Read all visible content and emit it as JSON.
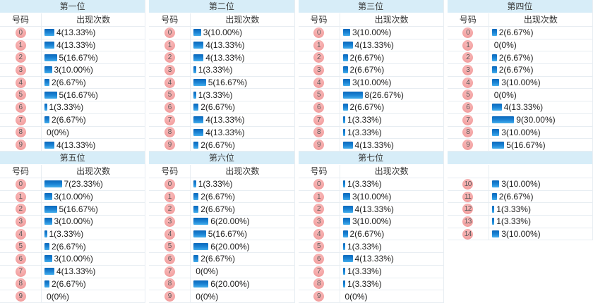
{
  "colors": {
    "header_bg": "#d7edf8",
    "bar_blue_dark": "#0a67bb",
    "bar_blue_light": "#45aeeb",
    "badge_pink": "#f4a5a5",
    "row_border": "#e7edf2",
    "text_dark": "#1c1c1c"
  },
  "chart_data": [
    {
      "type": "bar",
      "title": "第一位",
      "number_header": "号码",
      "count_header": "出现次数",
      "categories": [
        "0",
        "1",
        "2",
        "3",
        "4",
        "5",
        "6",
        "7",
        "8",
        "9"
      ],
      "values": [
        4,
        4,
        5,
        3,
        2,
        5,
        1,
        2,
        0,
        4
      ],
      "labels": [
        "4(13.33%)",
        "4(13.33%)",
        "5(16.67%)",
        "3(10.00%)",
        "2(6.67%)",
        "5(16.67%)",
        "1(3.33%)",
        "2(6.67%)",
        "0(0%)",
        "4(13.33%)"
      ]
    },
    {
      "type": "bar",
      "title": "第二位",
      "number_header": "号码",
      "count_header": "出现次数",
      "categories": [
        "0",
        "1",
        "2",
        "3",
        "4",
        "5",
        "6",
        "7",
        "8",
        "9"
      ],
      "values": [
        3,
        4,
        4,
        1,
        5,
        1,
        2,
        4,
        4,
        2
      ],
      "labels": [
        "3(10.00%)",
        "4(13.33%)",
        "4(13.33%)",
        "1(3.33%)",
        "5(16.67%)",
        "1(3.33%)",
        "2(6.67%)",
        "4(13.33%)",
        "4(13.33%)",
        "2(6.67%)"
      ]
    },
    {
      "type": "bar",
      "title": "第三位",
      "number_header": "号码",
      "count_header": "出现次数",
      "categories": [
        "0",
        "1",
        "2",
        "3",
        "4",
        "5",
        "6",
        "7",
        "8",
        "9"
      ],
      "values": [
        3,
        4,
        2,
        2,
        3,
        8,
        2,
        1,
        1,
        4
      ],
      "labels": [
        "3(10.00%)",
        "4(13.33%)",
        "2(6.67%)",
        "2(6.67%)",
        "3(10.00%)",
        "8(26.67%)",
        "2(6.67%)",
        "1(3.33%)",
        "1(3.33%)",
        "4(13.33%)"
      ]
    },
    {
      "type": "bar",
      "title": "第四位",
      "number_header": "号码",
      "count_header": "出现次数",
      "categories": [
        "0",
        "1",
        "2",
        "3",
        "4",
        "5",
        "6",
        "7",
        "8",
        "9"
      ],
      "values": [
        2,
        0,
        2,
        2,
        3,
        0,
        4,
        9,
        3,
        5
      ],
      "labels": [
        "2(6.67%)",
        "0(0%)",
        "2(6.67%)",
        "2(6.67%)",
        "3(10.00%)",
        "0(0%)",
        "4(13.33%)",
        "9(30.00%)",
        "3(10.00%)",
        "5(16.67%)"
      ]
    },
    {
      "type": "bar",
      "title": "第五位",
      "number_header": "号码",
      "count_header": "出现次数",
      "categories": [
        "0",
        "1",
        "2",
        "3",
        "4",
        "5",
        "6",
        "7",
        "8",
        "9"
      ],
      "values": [
        7,
        3,
        5,
        3,
        1,
        2,
        3,
        4,
        2,
        0
      ],
      "labels": [
        "7(23.33%)",
        "3(10.00%)",
        "5(16.67%)",
        "3(10.00%)",
        "1(3.33%)",
        "2(6.67%)",
        "3(10.00%)",
        "4(13.33%)",
        "2(6.67%)",
        "0(0%)"
      ]
    },
    {
      "type": "bar",
      "title": "第六位",
      "number_header": "号码",
      "count_header": "出现次数",
      "categories": [
        "0",
        "1",
        "2",
        "3",
        "4",
        "5",
        "6",
        "7",
        "8",
        "9"
      ],
      "values": [
        1,
        2,
        2,
        6,
        5,
        6,
        2,
        0,
        6,
        0
      ],
      "labels": [
        "1(3.33%)",
        "2(6.67%)",
        "2(6.67%)",
        "6(20.00%)",
        "5(16.67%)",
        "6(20.00%)",
        "2(6.67%)",
        "0(0%)",
        "6(20.00%)",
        "0(0%)"
      ]
    },
    {
      "type": "bar",
      "title": "第七位",
      "number_header": "号码",
      "count_header": "出现次数",
      "categories": [
        "0",
        "1",
        "2",
        "3",
        "4",
        "5",
        "6",
        "7",
        "8",
        "9"
      ],
      "values": [
        1,
        3,
        4,
        3,
        2,
        1,
        4,
        1,
        1,
        0
      ],
      "labels": [
        "1(3.33%)",
        "3(10.00%)",
        "4(13.33%)",
        "3(10.00%)",
        "2(6.67%)",
        "1(3.33%)",
        "4(13.33%)",
        "1(3.33%)",
        "1(3.33%)",
        "0(0%)"
      ]
    },
    {
      "type": "bar",
      "title": "",
      "number_header": "",
      "count_header": "",
      "categories": [
        "10",
        "11",
        "12",
        "13",
        "14"
      ],
      "values": [
        3,
        2,
        1,
        1,
        3
      ],
      "labels": [
        "3(10.00%)",
        "2(6.67%)",
        "1(3.33%)",
        "1(3.33%)",
        "3(10.00%)"
      ]
    }
  ]
}
